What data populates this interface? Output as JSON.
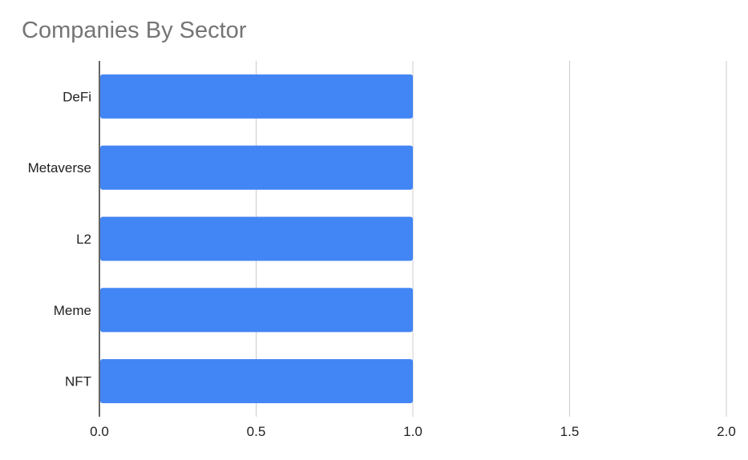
{
  "chart_data": {
    "type": "bar",
    "orientation": "horizontal",
    "title": "Companies By Sector",
    "xlabel": "",
    "ylabel": "",
    "categories": [
      "DeFi",
      "Metaverse",
      "L2",
      "Meme",
      "NFT"
    ],
    "values": [
      1,
      1,
      1,
      1,
      1
    ],
    "xlim": [
      0,
      2
    ],
    "xticks": [
      "0.0",
      "0.5",
      "1.0",
      "1.5",
      "2.0"
    ],
    "grid": true,
    "legend": "none",
    "bar_color": "#4285f4"
  }
}
